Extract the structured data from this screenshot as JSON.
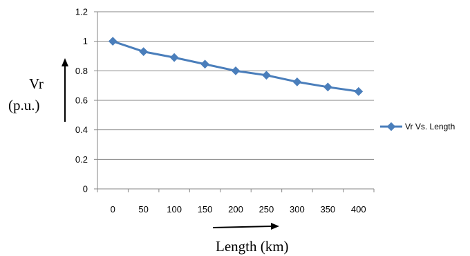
{
  "chart_data": {
    "type": "line",
    "x": [
      0,
      50,
      100,
      150,
      200,
      250,
      300,
      350,
      400
    ],
    "series": [
      {
        "name": "Vr Vs. Length",
        "values": [
          1.0,
          0.93,
          0.89,
          0.845,
          0.8,
          0.77,
          0.725,
          0.69,
          0.66
        ]
      }
    ],
    "ylim": [
      0,
      1.2
    ],
    "yticks": [
      "0",
      "0.2",
      "0.4",
      "0.6",
      "0.8",
      "1",
      "1.2"
    ],
    "xticks": [
      "0",
      "50",
      "100",
      "150",
      "200",
      "250",
      "300",
      "350",
      "400"
    ],
    "ylabel": {
      "line1": "Vr",
      "line2": "(p.u.)"
    },
    "xlabel": "Length (km)",
    "grid": "horizontal",
    "legend_position": "right",
    "series_color": "#4a7ebb",
    "grid_color": "#868686"
  }
}
